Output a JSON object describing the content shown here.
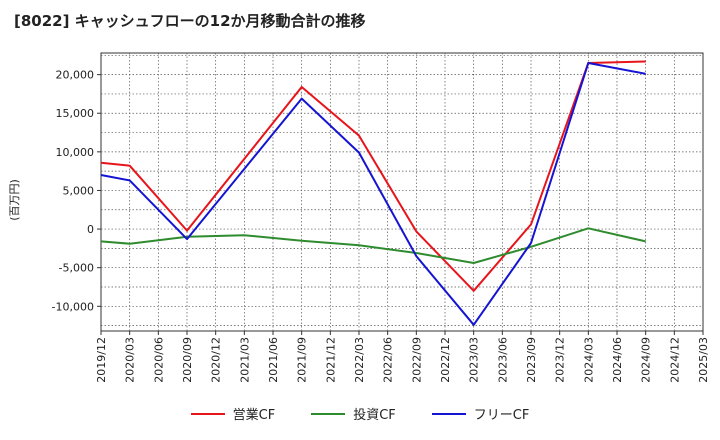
{
  "chart_data": {
    "type": "line",
    "title": "[8022]  キャッシュフローの12か月移動合計の推移",
    "ylabel": "(百万円)",
    "xlabel": "",
    "ylim": [
      -13200,
      22800
    ],
    "yticks": [
      20000,
      15000,
      10000,
      5000,
      0,
      -5000,
      -10000
    ],
    "ytick_labels": [
      "20,000",
      "15,000",
      "10,000",
      "5,000",
      "0",
      "-5,000",
      "-10,000"
    ],
    "categories": [
      "2019/12",
      "2020/03",
      "2020/06",
      "2020/09",
      "2020/12",
      "2021/03",
      "2021/06",
      "2021/09",
      "2021/12",
      "2022/03",
      "2022/06",
      "2022/09",
      "2022/12",
      "2023/03",
      "2023/06",
      "2023/09",
      "2023/12",
      "2024/03",
      "2024/06",
      "2024/09",
      "2024/12",
      "2025/03"
    ],
    "grid": true,
    "legend_position": "bottom",
    "series": [
      {
        "name": "営業CF",
        "color": "#e8141c",
        "values": [
          8600,
          8200,
          null,
          -200,
          null,
          null,
          null,
          18400,
          null,
          12100,
          null,
          -300,
          null,
          -8000,
          null,
          600,
          null,
          21500,
          null,
          21700,
          null,
          null
        ]
      },
      {
        "name": "投資CF",
        "color": "#2e8b2e",
        "values": [
          -1600,
          -1900,
          null,
          -1000,
          null,
          -800,
          null,
          -1500,
          null,
          -2100,
          null,
          -3100,
          null,
          -4400,
          null,
          -2300,
          null,
          100,
          null,
          -1600,
          null,
          null
        ]
      },
      {
        "name": "フリーCF",
        "color": "#1414d2",
        "values": [
          7000,
          6300,
          null,
          -1300,
          null,
          null,
          null,
          16900,
          null,
          9900,
          null,
          -3500,
          null,
          -12400,
          null,
          -1800,
          null,
          21500,
          null,
          20100,
          null,
          null
        ]
      }
    ]
  }
}
